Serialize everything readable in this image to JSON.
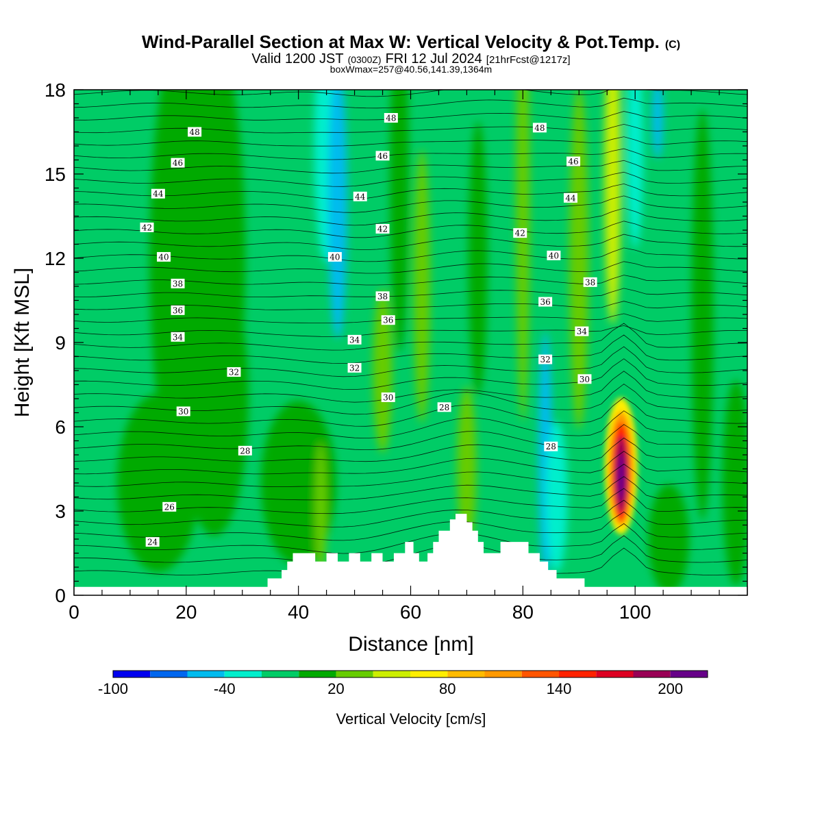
{
  "title": {
    "main": "Wind-Parallel Section at Max W: Vertical Velocity & Pot.Temp.",
    "copyright": "(C)",
    "valid_prefix": "Valid 1200 JST",
    "valid_zulu": "(0300Z)",
    "valid_date": "FRI 12 Jul 2024",
    "fcst": "[21hrFcst@1217z]",
    "boxinfo": "boxWmax=257@40.56,141.39,1364m"
  },
  "chart_data": {
    "type": "heatmap",
    "xlabel": "Distance [nm]",
    "ylabel": "Height [Kft MSL]",
    "xlim": [
      0,
      120
    ],
    "ylim": [
      0,
      18
    ],
    "x_ticks": [
      0,
      20,
      40,
      60,
      80,
      100
    ],
    "y_ticks": [
      0,
      3,
      6,
      9,
      12,
      15,
      18
    ],
    "x_tick_labels": [
      "0",
      "20",
      "40",
      "60",
      "80",
      "100"
    ],
    "y_tick_labels": [
      "0",
      "3",
      "6",
      "9",
      "12",
      "15",
      "18"
    ],
    "colorbar": {
      "label": "Vertical Velocity [cm/s]",
      "levels": [
        -100,
        -80,
        -60,
        -40,
        -20,
        0,
        20,
        40,
        60,
        80,
        100,
        120,
        140,
        160,
        180,
        200,
        220
      ],
      "tick_values": [
        -100,
        -40,
        20,
        80,
        140,
        200
      ],
      "tick_labels": [
        "-100",
        "-40",
        "20",
        "80",
        "140",
        "200"
      ],
      "colors": [
        "#0000ee",
        "#0066ee",
        "#00bbee",
        "#00eecc",
        "#00cc66",
        "#00aa00",
        "#66cc00",
        "#ccee00",
        "#ffee00",
        "#ffbb00",
        "#ff9900",
        "#ff5500",
        "#ff2200",
        "#dd0022",
        "#990055",
        "#660088"
      ]
    },
    "terrain_profile": [
      [
        0,
        0.3
      ],
      [
        34.5,
        0.3
      ],
      [
        34.5,
        0.6
      ],
      [
        37,
        0.6
      ],
      [
        37,
        0.9
      ],
      [
        38,
        0.9
      ],
      [
        38,
        1.2
      ],
      [
        39,
        1.2
      ],
      [
        39,
        1.5
      ],
      [
        43,
        1.5
      ],
      [
        43,
        1.2
      ],
      [
        45,
        1.2
      ],
      [
        45,
        1.5
      ],
      [
        47,
        1.5
      ],
      [
        47,
        1.2
      ],
      [
        49,
        1.2
      ],
      [
        49,
        1.5
      ],
      [
        51,
        1.5
      ],
      [
        51,
        1.2
      ],
      [
        53,
        1.2
      ],
      [
        53,
        1.5
      ],
      [
        55,
        1.5
      ],
      [
        55,
        1.2
      ],
      [
        57,
        1.2
      ],
      [
        57,
        1.5
      ],
      [
        59,
        1.5
      ],
      [
        59,
        1.9
      ],
      [
        60.5,
        1.9
      ],
      [
        60.5,
        1.5
      ],
      [
        61.5,
        1.5
      ],
      [
        61.5,
        1.2
      ],
      [
        63,
        1.2
      ],
      [
        63,
        1.5
      ],
      [
        64,
        1.5
      ],
      [
        64,
        1.9
      ],
      [
        65,
        1.9
      ],
      [
        65,
        2.3
      ],
      [
        67,
        2.3
      ],
      [
        67,
        2.7
      ],
      [
        68,
        2.7
      ],
      [
        68,
        2.9
      ],
      [
        70,
        2.9
      ],
      [
        70,
        2.6
      ],
      [
        71,
        2.6
      ],
      [
        71,
        2.3
      ],
      [
        72,
        2.3
      ],
      [
        72,
        1.9
      ],
      [
        73,
        1.9
      ],
      [
        73,
        1.5
      ],
      [
        76,
        1.5
      ],
      [
        76,
        1.9
      ],
      [
        81,
        1.9
      ],
      [
        81,
        1.5
      ],
      [
        83,
        1.5
      ],
      [
        83,
        1.2
      ],
      [
        84.5,
        1.2
      ],
      [
        84.5,
        0.9
      ],
      [
        86,
        0.9
      ],
      [
        86,
        0.6
      ],
      [
        91,
        0.6
      ],
      [
        91,
        0.3
      ],
      [
        120,
        0.3
      ],
      [
        120,
        0
      ],
      [
        0,
        0
      ]
    ],
    "theta_contour_labels": [
      {
        "value": "48",
        "x": 21.5,
        "y": 16.5
      },
      {
        "value": "46",
        "x": 18.5,
        "y": 15.4
      },
      {
        "value": "44",
        "x": 15,
        "y": 14.3
      },
      {
        "value": "42",
        "x": 13,
        "y": 13.1
      },
      {
        "value": "40",
        "x": 16,
        "y": 12.05
      },
      {
        "value": "38",
        "x": 18.5,
        "y": 11.1
      },
      {
        "value": "36",
        "x": 18.5,
        "y": 10.15
      },
      {
        "value": "34",
        "x": 18.5,
        "y": 9.2
      },
      {
        "value": "32",
        "x": 28.5,
        "y": 7.95
      },
      {
        "value": "30",
        "x": 19.5,
        "y": 6.55
      },
      {
        "value": "28",
        "x": 30.5,
        "y": 5.15
      },
      {
        "value": "26",
        "x": 17,
        "y": 3.15
      },
      {
        "value": "24",
        "x": 14,
        "y": 1.9
      },
      {
        "value": "48",
        "x": 56.5,
        "y": 17.0
      },
      {
        "value": "46",
        "x": 55,
        "y": 15.65
      },
      {
        "value": "44",
        "x": 51,
        "y": 14.2
      },
      {
        "value": "42",
        "x": 55,
        "y": 13.05
      },
      {
        "value": "40",
        "x": 46.5,
        "y": 12.05
      },
      {
        "value": "38",
        "x": 55,
        "y": 10.65
      },
      {
        "value": "36",
        "x": 56,
        "y": 9.8
      },
      {
        "value": "34",
        "x": 50,
        "y": 9.1
      },
      {
        "value": "32",
        "x": 50,
        "y": 8.1
      },
      {
        "value": "30",
        "x": 56,
        "y": 7.05
      },
      {
        "value": "28",
        "x": 66,
        "y": 6.7
      },
      {
        "value": "48",
        "x": 83,
        "y": 16.65
      },
      {
        "value": "46",
        "x": 89,
        "y": 15.45
      },
      {
        "value": "44",
        "x": 88.5,
        "y": 14.15
      },
      {
        "value": "42",
        "x": 79.5,
        "y": 12.9
      },
      {
        "value": "40",
        "x": 85.5,
        "y": 12.1
      },
      {
        "value": "38",
        "x": 92,
        "y": 11.15
      },
      {
        "value": "36",
        "x": 84,
        "y": 10.45
      },
      {
        "value": "34",
        "x": 90.5,
        "y": 9.4
      },
      {
        "value": "32",
        "x": 84,
        "y": 8.4
      },
      {
        "value": "30",
        "x": 91,
        "y": 7.7
      },
      {
        "value": "28",
        "x": 85,
        "y": 5.3
      }
    ]
  }
}
